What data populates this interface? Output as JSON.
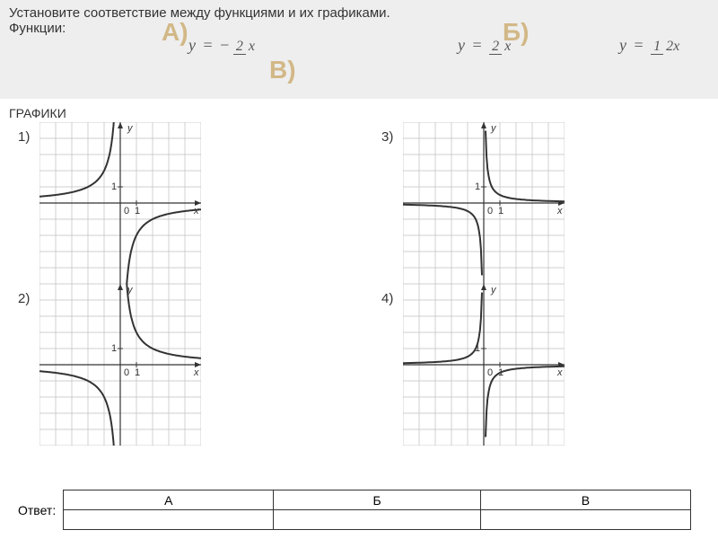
{
  "header": {
    "task": "Установите соответствие между функциями и их графиками.",
    "functions_label": "Функции:",
    "letters": {
      "a": "А)",
      "b": "Б)",
      "v": "В)"
    },
    "formulas": {
      "a": {
        "y": "y",
        "eq": "=",
        "sign": "−",
        "num": "2",
        "den": "x"
      },
      "b": {
        "y": "y",
        "eq": "=",
        "num": "2",
        "den": "x"
      },
      "v": {
        "y": "y",
        "eq": "=",
        "num": "1",
        "den": "2x"
      }
    }
  },
  "section_title": "ГРАФИКИ",
  "graphs": {
    "labels": {
      "g1": "1)",
      "g2": "2)",
      "g3": "3)",
      "g4": "4)"
    },
    "axis": {
      "labels": {
        "x": "x",
        "y": "y",
        "origin": "0",
        "one": "1"
      },
      "grid_color": "#bfbfbf",
      "axis_color": "#333333",
      "tick_fontsize": 11
    },
    "size": {
      "w": 180,
      "h": 180,
      "xmin": -5,
      "xmax": 5,
      "ymin": -5,
      "ymax": 5
    },
    "g1": {
      "type": "hyperbola",
      "k": -2,
      "curve_color": "#333333",
      "line_width": 2
    },
    "g2": {
      "type": "hyperbola",
      "k": 2,
      "curve_color": "#333333",
      "line_width": 2
    },
    "g3": {
      "type": "hyperbola",
      "k": 0.5,
      "curve_color": "#333333",
      "line_width": 2
    },
    "g4": {
      "type": "hyperbola",
      "k": -0.5,
      "curve_color": "#333333",
      "line_width": 2
    }
  },
  "answer": {
    "label": "Ответ:",
    "cols": [
      "А",
      "Б",
      "В"
    ]
  }
}
